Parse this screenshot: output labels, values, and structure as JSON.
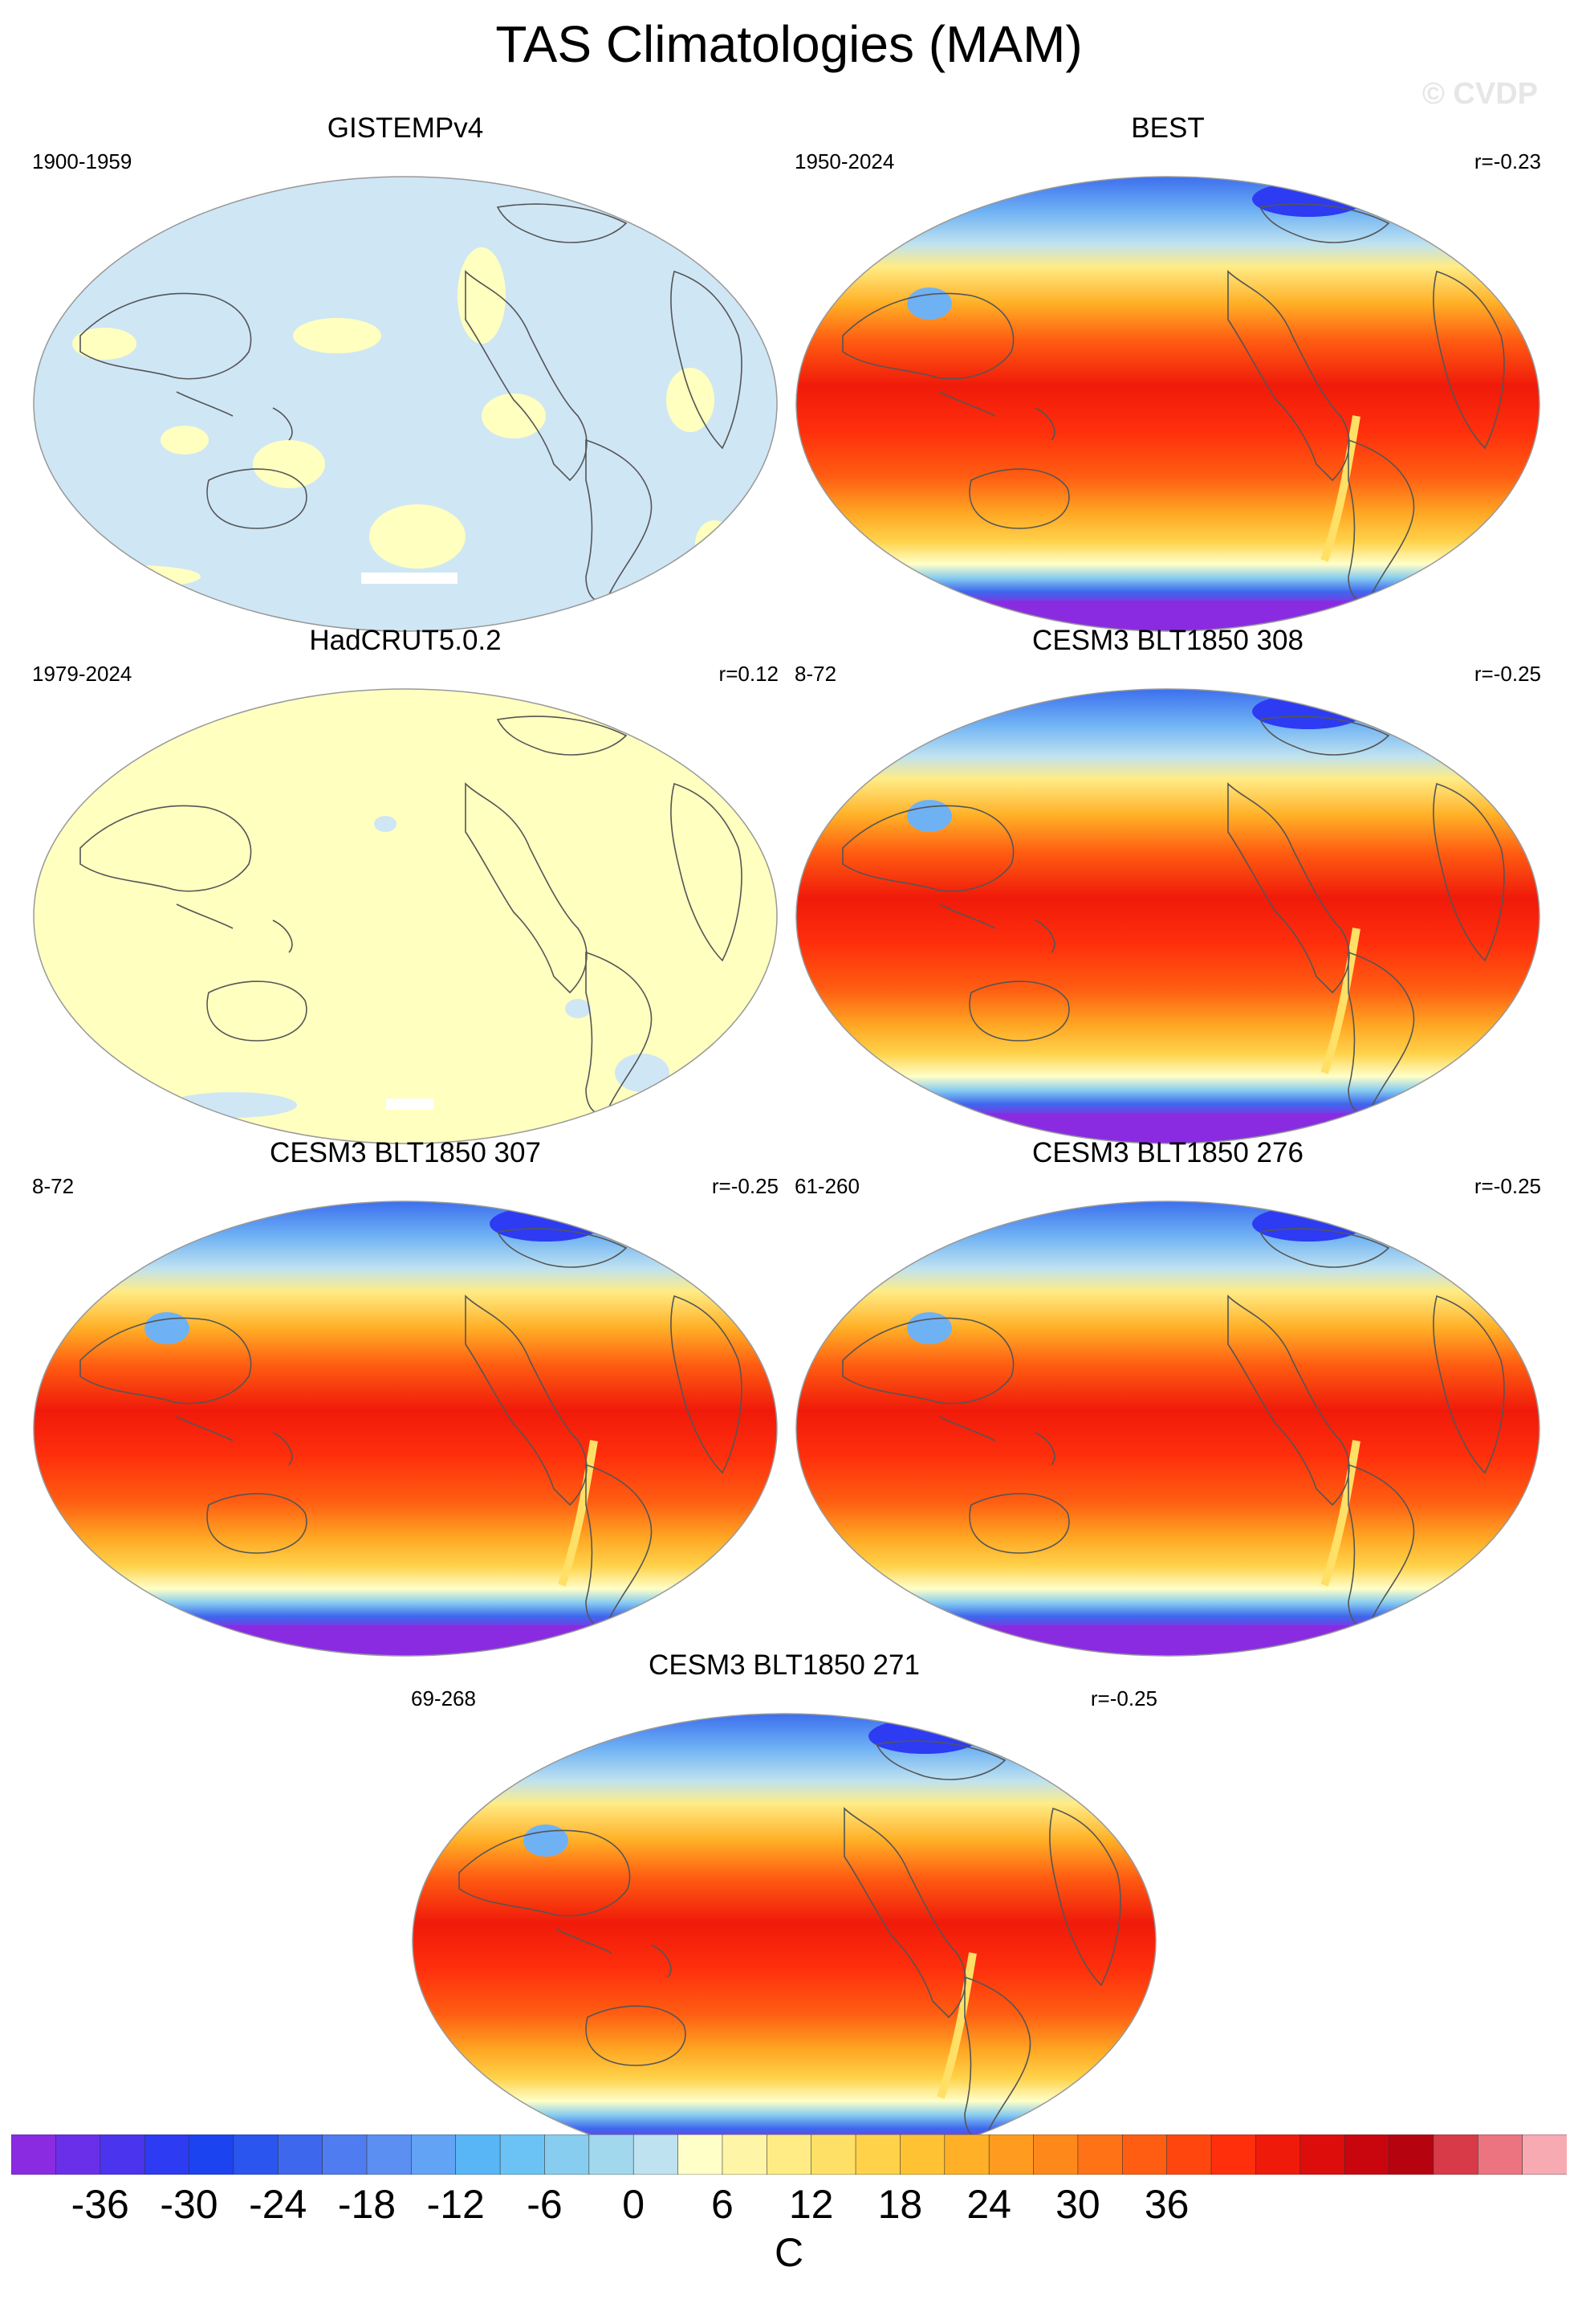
{
  "title": "TAS Climatologies (MAM)",
  "watermark": "© CVDP",
  "panels": [
    {
      "title": "GISTEMPv4",
      "left_label": "1900-1959",
      "right_label": "",
      "style": "gistemp"
    },
    {
      "title": "BEST",
      "left_label": "1950-2024",
      "right_label": "r=-0.23",
      "style": "full"
    },
    {
      "title": "HadCRUT5.0.2",
      "left_label": "1979-2024",
      "right_label": "r=0.12",
      "style": "hadcrut"
    },
    {
      "title": "CESM3 BLT1850 308",
      "left_label": "8-72",
      "right_label": "r=-0.25",
      "style": "full"
    },
    {
      "title": "CESM3 BLT1850 307",
      "left_label": "8-72",
      "right_label": "r=-0.25",
      "style": "full"
    },
    {
      "title": "CESM3 BLT1850 276",
      "left_label": "61-260",
      "right_label": "r=-0.25",
      "style": "full"
    },
    {
      "title": "CESM3 BLT1850 271",
      "left_label": "69-268",
      "right_label": "r=-0.25",
      "style": "full"
    }
  ],
  "colorbar": {
    "unit": "C",
    "tick_labels": [
      "-36",
      "-30",
      "-24",
      "-18",
      "-12",
      "-6",
      "0",
      "6",
      "12",
      "18",
      "24",
      "30",
      "36"
    ],
    "colors": [
      "#8a2be2",
      "#6a2fe8",
      "#4a34ee",
      "#2d3bf2",
      "#1c43f0",
      "#2a55ee",
      "#3d68ee",
      "#4f7cf0",
      "#5b8ff2",
      "#62a3f5",
      "#58b6f7",
      "#6bc3f5",
      "#87cdf0",
      "#a2d8ee",
      "#bfe2f0",
      "#ffffc8",
      "#fff5a6",
      "#ffec85",
      "#ffe066",
      "#ffd24a",
      "#ffc233",
      "#ffb026",
      "#ff9c1f",
      "#ff881a",
      "#ff7316",
      "#ff5e12",
      "#ff460f",
      "#ff2f0c",
      "#f01a0a",
      "#dd0d0b",
      "#c9060d",
      "#b5040f",
      "#d83a48",
      "#ec7480",
      "#f8aab2"
    ]
  }
}
